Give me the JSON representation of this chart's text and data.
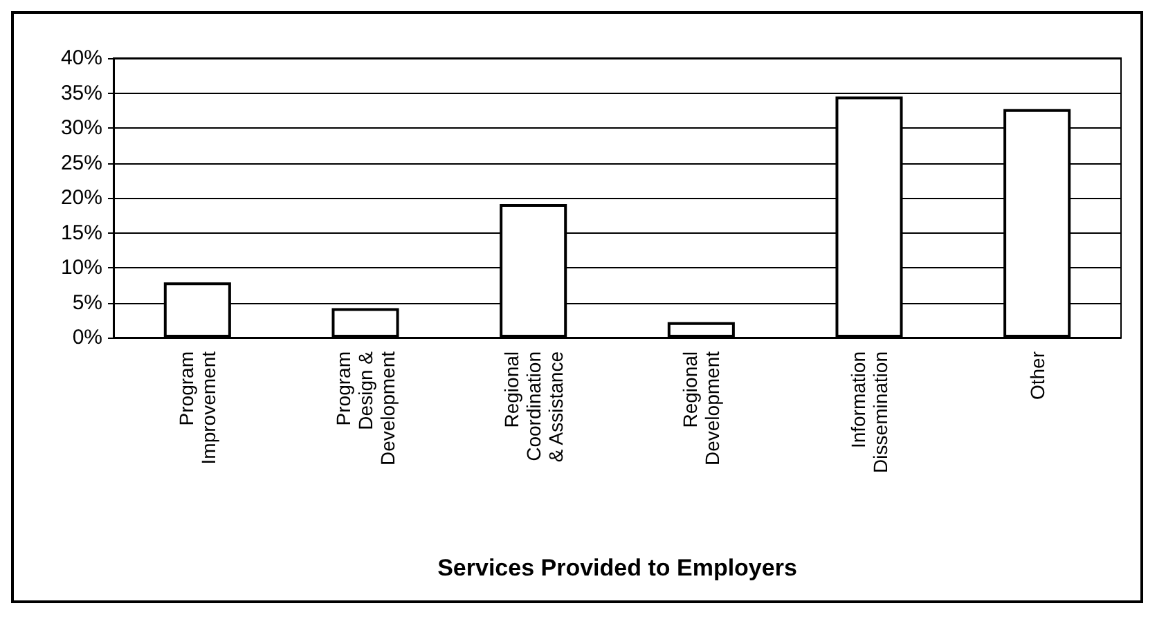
{
  "chart_data": {
    "type": "bar",
    "xlabel": "Services Provided to Employers",
    "categories": [
      "Program\nImprovement",
      "Program\nDesign &\nDevelopment",
      "Regional\nCoordination\n& Assistance",
      "Regional\nDevelopment",
      "Information\nDissemination",
      "Other"
    ],
    "values": [
      7.9,
      4.2,
      19.1,
      2.2,
      34.5,
      32.7
    ],
    "color": "#ffffff",
    "ylim": [
      0,
      40
    ],
    "yticks": [
      {
        "value": 0,
        "label": "0%"
      },
      {
        "value": 5,
        "label": "5%"
      },
      {
        "value": 10,
        "label": "10%"
      },
      {
        "value": 15,
        "label": "15%"
      },
      {
        "value": 20,
        "label": "20%"
      },
      {
        "value": 25,
        "label": "25%"
      },
      {
        "value": 30,
        "label": "30%"
      },
      {
        "value": 35,
        "label": "35%"
      },
      {
        "value": 40,
        "label": "40%"
      }
    ],
    "grid": "y"
  }
}
